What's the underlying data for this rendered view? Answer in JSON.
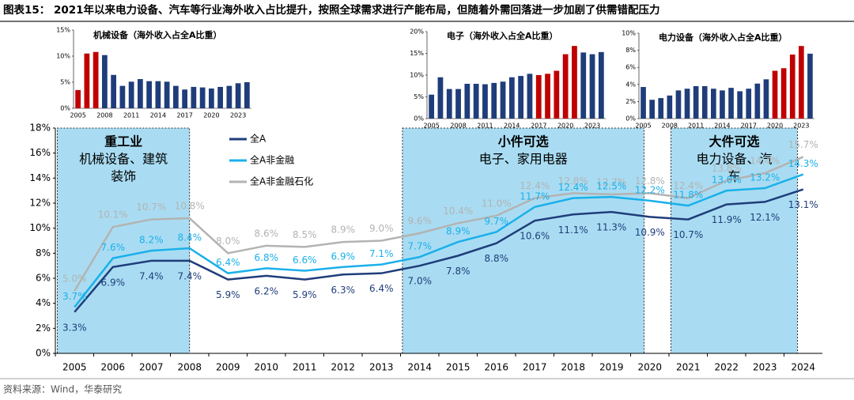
{
  "title": "图表15：  2021年以来电力设备、汽车等行业海外收入占比提升，按照全球需求进行产能布局，但随着外需回落进一步加剧了供需错配压力",
  "source": "资料来源：Wind，华泰研究",
  "chart_data": [
    {
      "type": "line",
      "categories": [
        "2005",
        "2006",
        "2007",
        "2008",
        "2009",
        "2010",
        "2011",
        "2012",
        "2013",
        "2014",
        "2015",
        "2016",
        "2017",
        "2018",
        "2019",
        "2020",
        "2021",
        "2022",
        "2023",
        "2024"
      ],
      "series": [
        {
          "name": "全A",
          "color": "#1f3d7a",
          "values": [
            3.3,
            6.9,
            7.4,
            7.4,
            5.9,
            6.2,
            5.9,
            6.3,
            6.4,
            7.0,
            7.8,
            8.8,
            10.6,
            11.1,
            11.3,
            10.9,
            10.7,
            11.9,
            12.1,
            13.1
          ],
          "value_labels": [
            "3.3%",
            "6.9%",
            "7.4%",
            "7.4%",
            "5.9%",
            "6.2%",
            "5.9%",
            "6.3%",
            "6.4%",
            "7.0%",
            "7.8%",
            "8.8%",
            "10.6%",
            "11.1%",
            "11.3%",
            "10.9%",
            "10.7%",
            "11.9%",
            "12.1%",
            "13.1%"
          ]
        },
        {
          "name": "全A非金融",
          "color": "#1ab0ea",
          "values": [
            3.7,
            7.6,
            8.2,
            8.4,
            6.4,
            6.8,
            6.6,
            6.9,
            7.1,
            7.7,
            8.9,
            9.7,
            11.7,
            12.4,
            12.5,
            12.2,
            11.8,
            13.0,
            13.2,
            14.3
          ],
          "value_labels": [
            "3.7%",
            "7.6%",
            "8.2%",
            "8.4%",
            "6.4%",
            "6.8%",
            "6.6%",
            "6.9%",
            "7.1%",
            "7.7%",
            "8.9%",
            "9.7%",
            "11.7%",
            "12.4%",
            "12.5%",
            "12.2%",
            "11.8%",
            "13.0%",
            "13.2%",
            "14.3%"
          ]
        },
        {
          "name": "全A非金融石化",
          "color": "#b3b3b3",
          "values": [
            5.0,
            10.1,
            10.7,
            10.8,
            8.0,
            8.6,
            8.5,
            8.9,
            9.0,
            9.6,
            10.4,
            11.0,
            12.4,
            12.8,
            12.7,
            12.8,
            12.4,
            13.8,
            14.4,
            15.7
          ],
          "value_labels": [
            "5.0%",
            "10.1%",
            "10.7%",
            "10.8%",
            "8.0%",
            "8.6%",
            "8.5%",
            "8.9%",
            "9.0%",
            "9.6%",
            "10.4%",
            "11.0%",
            "12.4%",
            "12.8%",
            "12.7%",
            "12.8%",
            "12.4%",
            "13.8%",
            "14.4%",
            "15.7%"
          ]
        }
      ],
      "ylim": [
        0,
        18
      ],
      "yticks": [
        {
          "value": 0,
          "label": "0%"
        },
        {
          "value": 2,
          "label": "2%"
        },
        {
          "value": 4,
          "label": "4%"
        },
        {
          "value": 6,
          "label": "6%"
        },
        {
          "value": 8,
          "label": "8%"
        },
        {
          "value": 10,
          "label": "10%"
        },
        {
          "value": 12,
          "label": "12%"
        },
        {
          "value": 14,
          "label": "14%"
        },
        {
          "value": 16,
          "label": "16%"
        },
        {
          "value": 18,
          "label": "18%"
        }
      ],
      "regions": [
        {
          "from": "2005",
          "to": "2008",
          "title": "重工业",
          "subtitle": "机械设备、建筑",
          "subtitle2": "装饰"
        },
        {
          "from": "2014",
          "to": "2019",
          "title": "小件可选",
          "subtitle": "电子、家用电器"
        },
        {
          "from": "2021",
          "to": "2023",
          "title": "大件可选",
          "subtitle": "电力设备、汽",
          "subtitle2": "车"
        }
      ],
      "region_color": "#a9dcf2",
      "legend": "top-left"
    },
    {
      "type": "bar",
      "title": "机械设备（海外收入占全A比重）",
      "categories": [
        "2005",
        null,
        null,
        "2008",
        null,
        null,
        "2011",
        null,
        null,
        "2014",
        null,
        null,
        "2017",
        null,
        null,
        "2020",
        null,
        null,
        "2023",
        null
      ],
      "values": [
        3.5,
        10.5,
        10.8,
        10.2,
        6.4,
        4.3,
        5.1,
        5.6,
        5.2,
        5.2,
        5.1,
        4.3,
        3.6,
        4.1,
        4.0,
        3.8,
        4.1,
        4.3,
        4.8,
        5.0
      ],
      "colors": [
        "#c00000",
        "#c00000",
        "#c00000",
        "#1f3d7a",
        "#1f3d7a",
        "#1f3d7a",
        "#1f3d7a",
        "#1f3d7a",
        "#1f3d7a",
        "#1f3d7a",
        "#1f3d7a",
        "#1f3d7a",
        "#1f3d7a",
        "#1f3d7a",
        "#1f3d7a",
        "#1f3d7a",
        "#1f3d7a",
        "#1f3d7a",
        "#1f3d7a",
        "#1f3d7a"
      ],
      "ylim": [
        0,
        15
      ],
      "yticks": [
        {
          "value": 0,
          "label": "0%"
        },
        {
          "value": 5,
          "label": "5%"
        },
        {
          "value": 10,
          "label": "10%"
        },
        {
          "value": 15,
          "label": "15%"
        }
      ]
    },
    {
      "type": "bar",
      "title": "电子（海外收入占全A比重）",
      "categories": [
        "2005",
        null,
        null,
        "2008",
        null,
        null,
        "2011",
        null,
        null,
        "2014",
        null,
        null,
        "2017",
        null,
        null,
        "2020",
        null,
        null,
        "2023",
        null
      ],
      "values": [
        5.5,
        9.5,
        6.8,
        6.8,
        8.0,
        8.0,
        7.9,
        8.2,
        8.5,
        9.5,
        9.8,
        10.3,
        10.0,
        10.3,
        11.0,
        14.8,
        16.7,
        15.2,
        14.8,
        15.3
      ],
      "colors": [
        "#1f3d7a",
        "#1f3d7a",
        "#1f3d7a",
        "#1f3d7a",
        "#1f3d7a",
        "#1f3d7a",
        "#1f3d7a",
        "#1f3d7a",
        "#1f3d7a",
        "#1f3d7a",
        "#1f3d7a",
        "#1f3d7a",
        "#c00000",
        "#c00000",
        "#c00000",
        "#c00000",
        "#c00000",
        "#1f3d7a",
        "#1f3d7a",
        "#1f3d7a"
      ],
      "ylim": [
        0,
        20
      ],
      "yticks": [
        {
          "value": 0,
          "label": "0%"
        },
        {
          "value": 5,
          "label": "5%"
        },
        {
          "value": 10,
          "label": "10%"
        },
        {
          "value": 15,
          "label": "15%"
        },
        {
          "value": 20,
          "label": "20%"
        }
      ]
    },
    {
      "type": "bar",
      "title": "电力设备（海外收入占全A比重）",
      "categories": [
        "2005",
        null,
        null,
        "2008",
        null,
        null,
        "2011",
        null,
        null,
        "2014",
        null,
        null,
        "2017",
        null,
        null,
        "2020",
        null,
        null,
        "2023",
        null
      ],
      "values": [
        3.7,
        2.2,
        2.4,
        2.7,
        3.3,
        3.5,
        3.8,
        3.8,
        3.5,
        3.3,
        3.6,
        3.2,
        3.5,
        4.1,
        4.6,
        5.6,
        5.9,
        7.5,
        8.5,
        7.6
      ],
      "colors": [
        "#1f3d7a",
        "#1f3d7a",
        "#1f3d7a",
        "#1f3d7a",
        "#1f3d7a",
        "#1f3d7a",
        "#1f3d7a",
        "#1f3d7a",
        "#1f3d7a",
        "#1f3d7a",
        "#1f3d7a",
        "#1f3d7a",
        "#1f3d7a",
        "#1f3d7a",
        "#1f3d7a",
        "#c00000",
        "#c00000",
        "#c00000",
        "#c00000",
        "#1f3d7a"
      ],
      "ylim": [
        0,
        10
      ],
      "yticks": [
        {
          "value": 0,
          "label": "0%"
        },
        {
          "value": 2,
          "label": "2%"
        },
        {
          "value": 4,
          "label": "4%"
        },
        {
          "value": 6,
          "label": "6%"
        },
        {
          "value": 8,
          "label": "8%"
        },
        {
          "value": 10,
          "label": "10%"
        }
      ]
    }
  ]
}
